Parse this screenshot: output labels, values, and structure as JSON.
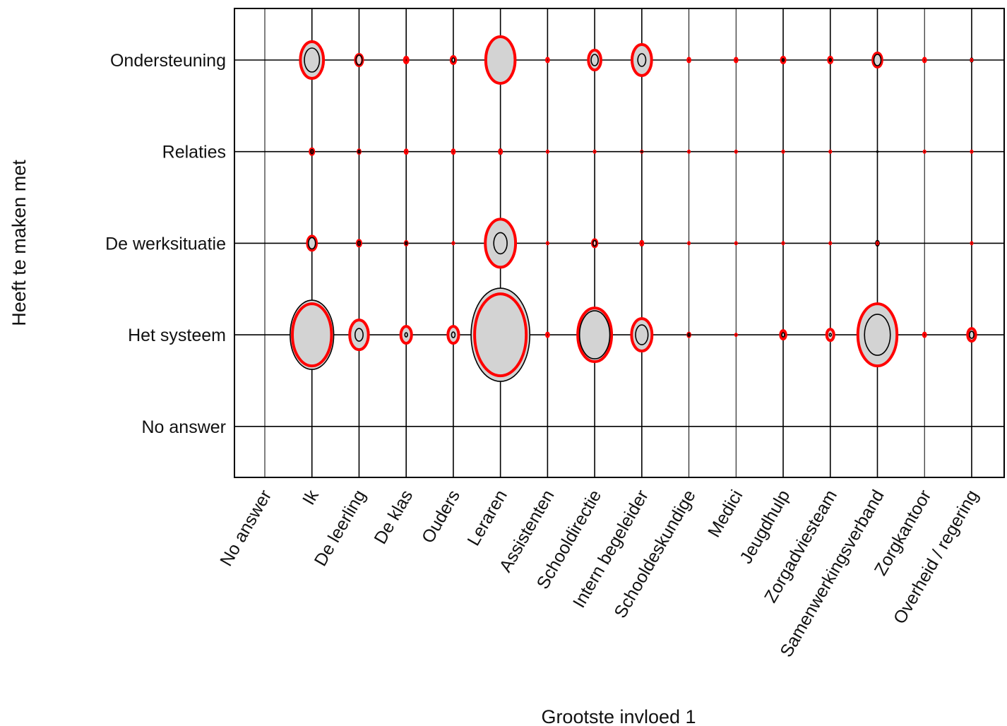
{
  "chart_data": {
    "type": "bubble",
    "xlabel": "Grootste invloed 1",
    "ylabel": "Heeft te maken met",
    "x_categories": [
      "No answer",
      "Ik",
      "De leerling",
      "De klas",
      "Ouders",
      "Leraren",
      "Assistenten",
      "Schooldirectie",
      "Intern begeleider",
      "Schooldeskundige",
      "Medici",
      "Jeugdhulp",
      "Zorgadviesteam",
      "Samenwerkingsverband",
      "Zorgkantoor",
      "Overheid / regering"
    ],
    "y_categories": [
      "Ondersteuning",
      "Relaties",
      "De werksituatie",
      "Het systeem",
      "No answer"
    ],
    "size_scale": "relative frequency (ellipse half-height)",
    "series": [
      {
        "color": "#000000",
        "values": [
          [
            0,
            17,
            7,
            4,
            3,
            33,
            0,
            8,
            9,
            0,
            0,
            2,
            2,
            8,
            0,
            3
          ],
          [
            0,
            3,
            2,
            0,
            0,
            4,
            0,
            2,
            1,
            0,
            0,
            0,
            0,
            1,
            0,
            0
          ],
          [
            0,
            8,
            3,
            2,
            2,
            15,
            0,
            4,
            4,
            0,
            0,
            0,
            0,
            4,
            0,
            2
          ],
          [
            0,
            49,
            9,
            3,
            4,
            66,
            0,
            34,
            14,
            2,
            0,
            3,
            2,
            29,
            0,
            5
          ],
          [
            0,
            0,
            0,
            0,
            0,
            0,
            0,
            0,
            0,
            0,
            0,
            0,
            0,
            0,
            0,
            0
          ]
        ]
      },
      {
        "color": "#ff0000",
        "values": [
          [
            0,
            26,
            8,
            4,
            5,
            33,
            3,
            14,
            22,
            3,
            3,
            4,
            4,
            10,
            3,
            2
          ],
          [
            0,
            4,
            3,
            3,
            3,
            3,
            2,
            2,
            2,
            2,
            2,
            2,
            2,
            0,
            2,
            2
          ],
          [
            0,
            10,
            4,
            3,
            2,
            34,
            2,
            5,
            3,
            2,
            2,
            2,
            2,
            2,
            0,
            2
          ],
          [
            0,
            44,
            21,
            12,
            12,
            58,
            3,
            38,
            23,
            3,
            2,
            6,
            8,
            44,
            3,
            9
          ],
          [
            0,
            0,
            0,
            0,
            0,
            0,
            0,
            0,
            0,
            0,
            0,
            0,
            0,
            0,
            0,
            0
          ]
        ]
      }
    ],
    "grid": true
  }
}
